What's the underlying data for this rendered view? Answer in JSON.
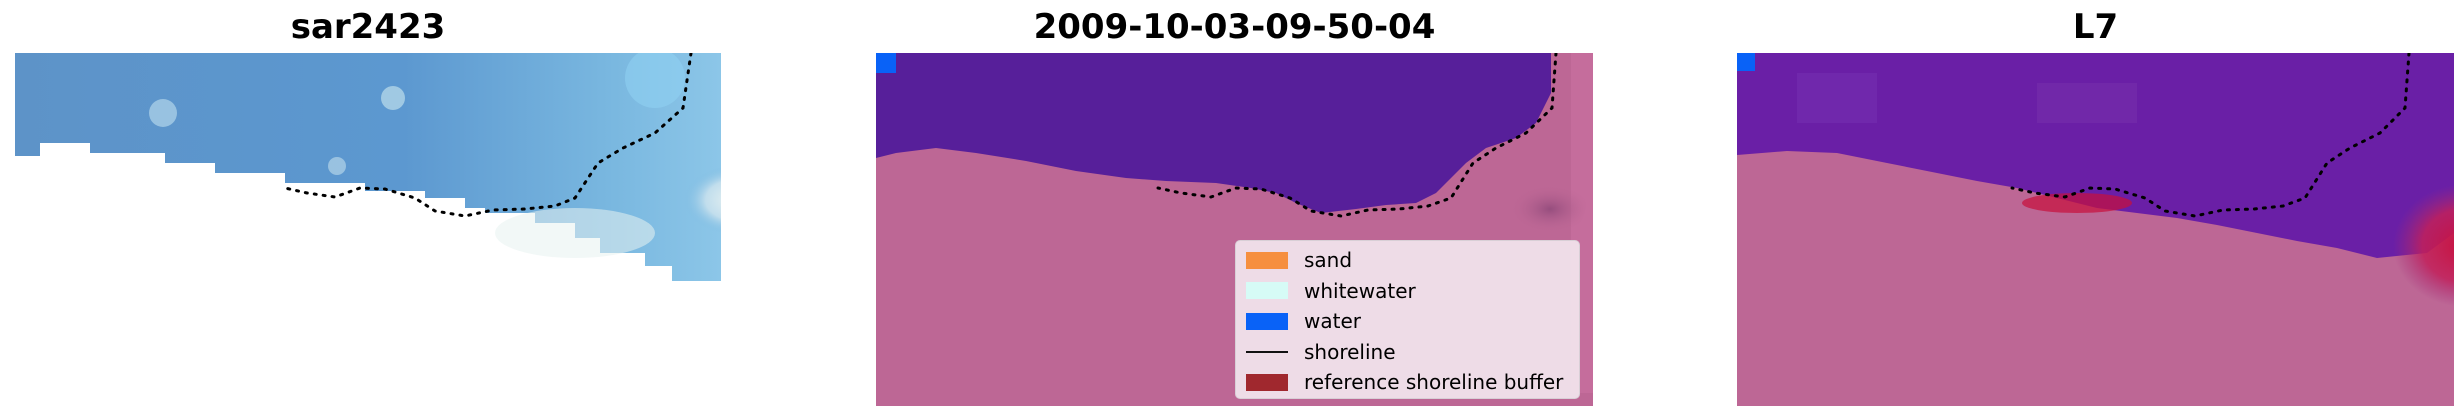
{
  "panels": [
    {
      "title": "sar2423"
    },
    {
      "title": "2009-10-03-09-50-04"
    },
    {
      "title": "L7"
    }
  ],
  "legend": {
    "items": [
      {
        "label": "sand",
        "color": "#f68f3f"
      },
      {
        "label": "whitewater",
        "color": "#d6fbf6"
      },
      {
        "label": "water",
        "color": "#0962f7"
      },
      {
        "label": "shoreline",
        "color": "#000000"
      },
      {
        "label": "reference shoreline buffer",
        "color": "#a0282e"
      }
    ]
  },
  "colors": {
    "rgb_water": "#5a96cc",
    "class_water": "#571f9a",
    "class_land": "#bd6795",
    "mndwi_water": "#6a1fa6",
    "mndwi_high": "#c8103c"
  }
}
